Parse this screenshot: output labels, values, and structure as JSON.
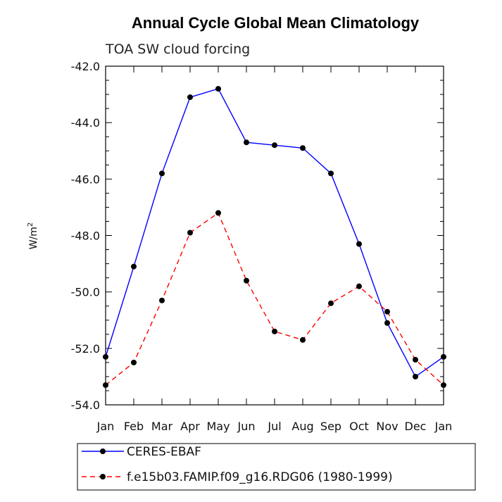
{
  "chart_data": {
    "type": "line",
    "title": "Annual Cycle Global Mean Climatology",
    "subtitle": "TOA SW cloud forcing",
    "xlabel": "",
    "ylabel": "W/m",
    "ylabel_superscript": "2",
    "categories": [
      "Jan",
      "Feb",
      "Mar",
      "Apr",
      "May",
      "Jun",
      "Jul",
      "Aug",
      "Sep",
      "Oct",
      "Nov",
      "Dec",
      "Jan"
    ],
    "ylim": [
      -54.0,
      -42.0
    ],
    "yticks": [
      "-42.0",
      "-44.0",
      "-46.0",
      "-48.0",
      "-50.0",
      "-52.0",
      "-54.0"
    ],
    "ytick_values": [
      -42,
      -44,
      -46,
      -48,
      -50,
      -52,
      -54
    ],
    "grid": false,
    "legend_position": "bottom",
    "series": [
      {
        "name": "CERES-EBAF",
        "color": "#0000ff",
        "dash": "solid",
        "values": [
          -52.3,
          -49.1,
          -45.8,
          -43.1,
          -42.8,
          -44.7,
          -44.8,
          -44.9,
          -45.8,
          -48.3,
          -51.1,
          -53.0,
          -52.3
        ]
      },
      {
        "name": "f.e15b03.FAMIP.f09_g16.RDG06 (1980-1999)",
        "color": "#ff0000",
        "dash": "dashed",
        "values": [
          -53.3,
          -52.5,
          -50.3,
          -47.9,
          -47.2,
          -49.6,
          -51.4,
          -51.7,
          -50.4,
          -49.8,
          -50.7,
          -52.4,
          -53.3
        ]
      }
    ]
  }
}
